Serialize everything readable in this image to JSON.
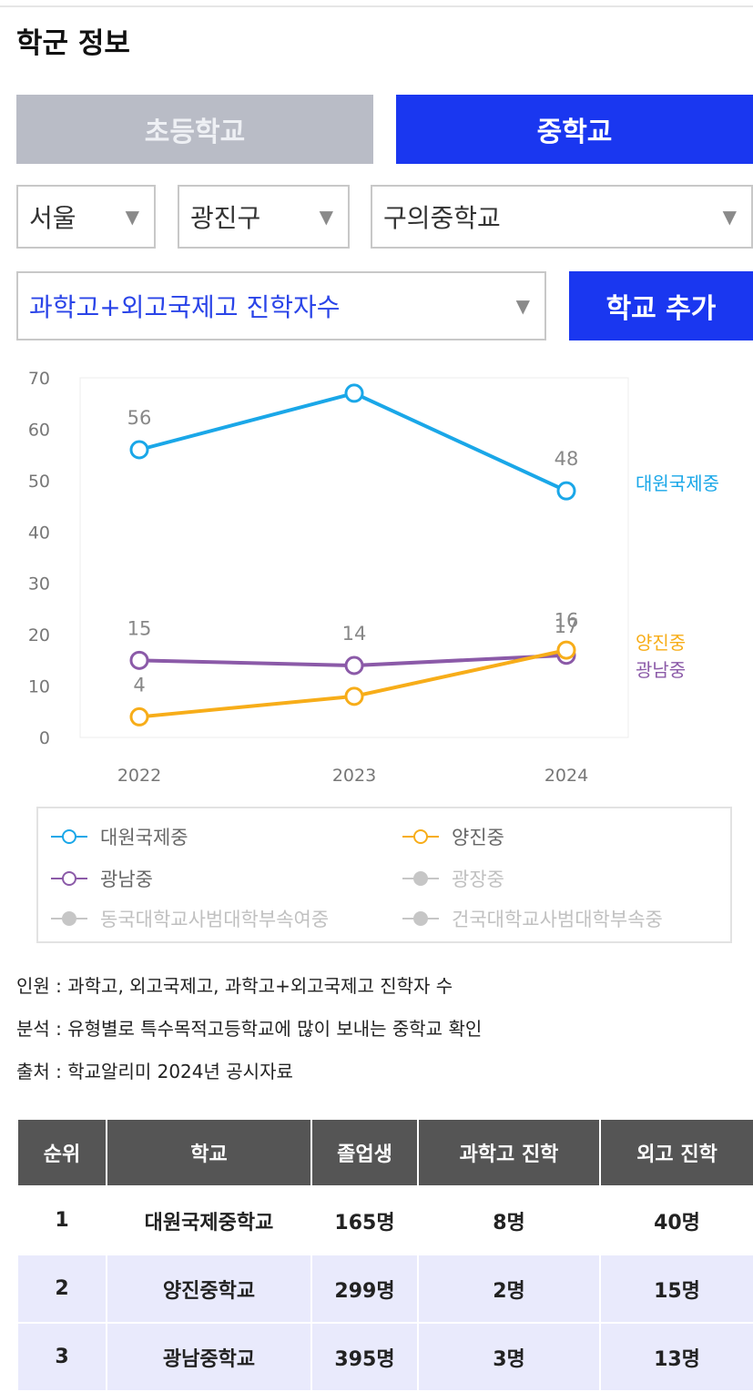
{
  "header": {
    "title": "학군 정보"
  },
  "tabs": {
    "elementary": "초등학교",
    "middle": "중학교"
  },
  "filters": {
    "city": "서울",
    "district": "광진구",
    "school": "구의중학교",
    "metric": "과학고+외고국제고 진학자수",
    "add_button": "학교 추가",
    "arrow": "▼"
  },
  "chart_data": {
    "type": "line",
    "categories": [
      "2022",
      "2023",
      "2024"
    ],
    "ylim": [
      0,
      70
    ],
    "yticks": [
      "0",
      "10",
      "20",
      "30",
      "40",
      "50",
      "60",
      "70"
    ],
    "series": [
      {
        "name": "대원국제중",
        "color": "#1aa7e8",
        "values": [
          56,
          67,
          48
        ],
        "labels": [
          "56",
          "",
          "48"
        ]
      },
      {
        "name": "광남중",
        "color": "#8b5aa8",
        "values": [
          15,
          14,
          16
        ],
        "labels": [
          "15",
          "14",
          "16"
        ]
      },
      {
        "name": "양진중",
        "color": "#f7ad19",
        "values": [
          4,
          8,
          17
        ],
        "labels": [
          "4",
          "",
          "17"
        ]
      }
    ]
  },
  "legend": {
    "items": [
      {
        "label": "대원국제중",
        "color": "#1aa7e8",
        "active": true
      },
      {
        "label": "양진중",
        "color": "#f7ad19",
        "active": true
      },
      {
        "label": "광남중",
        "color": "#8b5aa8",
        "active": true
      },
      {
        "label": "광장중",
        "color": "#c6c6c6",
        "active": false
      },
      {
        "label": "동국대학교사범대학부속여중",
        "color": "#c6c6c6",
        "active": false
      },
      {
        "label": "건국대학교사범대학부속중",
        "color": "#c6c6c6",
        "active": false
      }
    ]
  },
  "notes": [
    "인원 : 과학고, 외고국제고, 과학고+외고국제고 진학자 수",
    "분석 : 유형별로 특수목적고등학교에 많이 보내는 중학교 확인",
    "출처 : 학교알리미 2024년 공시자료"
  ],
  "table": {
    "headers": [
      "순위",
      "학교",
      "졸업생",
      "과학고 진학",
      "외고 진학"
    ],
    "rows": [
      [
        "1",
        "대원국제중학교",
        "165명",
        "8명",
        "40명"
      ],
      [
        "2",
        "양진중학교",
        "299명",
        "2명",
        "15명"
      ],
      [
        "3",
        "광남중학교",
        "395명",
        "3명",
        "13명"
      ]
    ]
  }
}
